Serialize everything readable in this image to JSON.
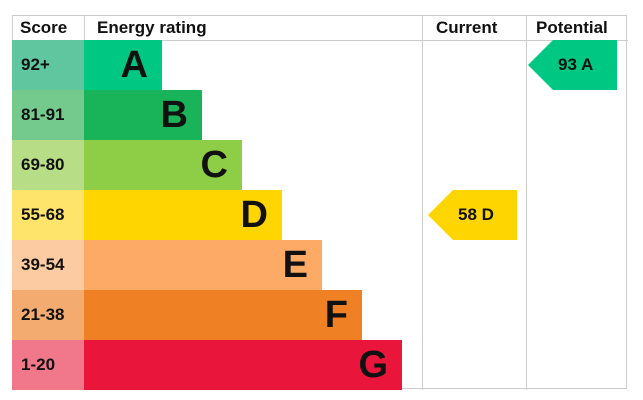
{
  "chart_data": {
    "type": "table",
    "headers": {
      "score": "Score",
      "rating": "Energy rating",
      "current": "Current",
      "potential": "Potential"
    },
    "bands": [
      {
        "letter": "A",
        "range": "92+",
        "color": "#00c781",
        "score_color": "#5fc6a0"
      },
      {
        "letter": "B",
        "range": "81-91",
        "color": "#19b459",
        "score_color": "#74ca8c"
      },
      {
        "letter": "C",
        "range": "69-80",
        "color": "#8dce46",
        "score_color": "#b7de86"
      },
      {
        "letter": "D",
        "range": "55-68",
        "color": "#ffd500",
        "score_color": "#ffe46c"
      },
      {
        "letter": "E",
        "range": "39-54",
        "color": "#fcaa65",
        "score_color": "#fdcba2"
      },
      {
        "letter": "F",
        "range": "21-38",
        "color": "#ef8023",
        "score_color": "#f4ab6f"
      },
      {
        "letter": "G",
        "range": "1-20",
        "color": "#e9153b",
        "score_color": "#f0788a"
      }
    ],
    "current": {
      "value": 58,
      "letter": "D",
      "label": "58  D"
    },
    "potential": {
      "value": 93,
      "letter": "A",
      "label": "93  A"
    }
  }
}
